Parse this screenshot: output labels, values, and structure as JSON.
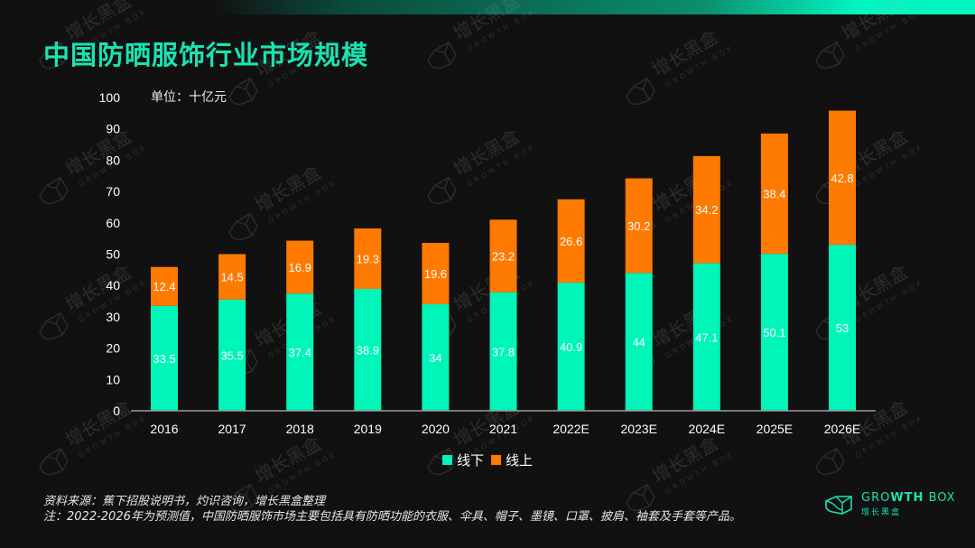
{
  "header": {
    "title": "中国防晒服饰行业市场规模",
    "unit_label": "单位：十亿元"
  },
  "colors": {
    "offline": "#00f5b8",
    "online": "#ff7a00",
    "title": "#19e3b1",
    "background": "#111111"
  },
  "chart_data": {
    "type": "bar",
    "stacked": true,
    "title": "中国防晒服饰行业市场规模",
    "ylabel": "单位：十亿元",
    "xlabel": "",
    "ylim": [
      0,
      100
    ],
    "yticks": [
      0,
      10,
      20,
      30,
      40,
      50,
      60,
      70,
      80,
      90,
      100
    ],
    "grid": false,
    "legend_position": "bottom-center",
    "categories": [
      "2016",
      "2017",
      "2018",
      "2019",
      "2020",
      "2021",
      "2022E",
      "2023E",
      "2024E",
      "2025E",
      "2026E"
    ],
    "series": [
      {
        "name": "线下",
        "color": "#00f5b8",
        "values": [
          33.5,
          35.5,
          37.4,
          38.9,
          34,
          37.8,
          40.9,
          44,
          47.1,
          50.1,
          53
        ]
      },
      {
        "name": "线上",
        "color": "#ff7a00",
        "values": [
          12.4,
          14.5,
          16.9,
          19.3,
          19.6,
          23.2,
          26.6,
          30.2,
          34.2,
          38.4,
          42.8
        ]
      }
    ]
  },
  "legend": {
    "items": [
      {
        "label": "线下",
        "color": "#00f5b8"
      },
      {
        "label": "线上",
        "color": "#ff7a00"
      }
    ]
  },
  "footer": {
    "source": "资料来源：蕉下招股说明书，灼识咨询，增长黑盒整理",
    "note": "注：2022-2026年为预测值，中国防晒服饰市场主要包括具有防晒功能的衣服、伞具、帽子、墨镜、口罩、披肩、袖套及手套等产品。"
  },
  "logo": {
    "en_thin_1": "GRO",
    "en_bold": "WTH",
    "en_thin_2": " BOX",
    "cn": "增长黑盒"
  },
  "watermark": {
    "cn": "增长黑盒",
    "en": "GROWTH BOX"
  }
}
